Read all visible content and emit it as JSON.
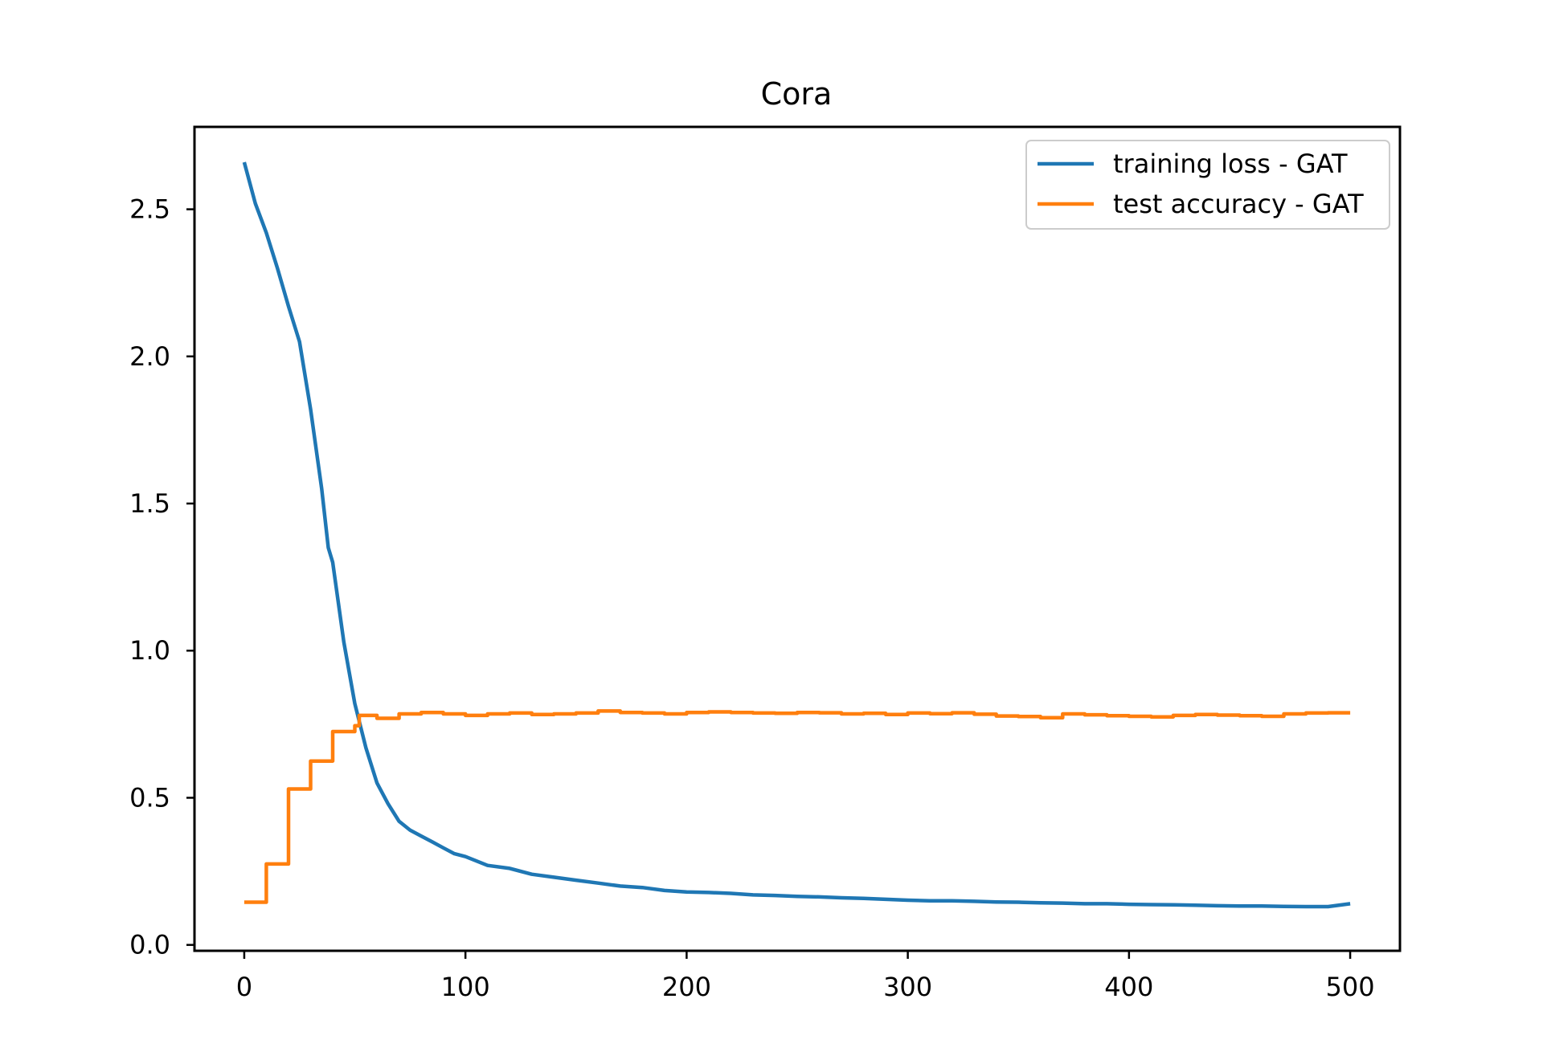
{
  "chart_data": {
    "type": "line",
    "title": "Cora",
    "xlabel": "",
    "ylabel": "",
    "xlim": [
      -22.5,
      522.5
    ],
    "ylim": [
      -0.02,
      2.78
    ],
    "xticks": [
      0,
      100,
      200,
      300,
      400,
      500
    ],
    "xtick_labels": [
      "0",
      "100",
      "200",
      "300",
      "400",
      "500"
    ],
    "yticks": [
      0.0,
      0.5,
      1.0,
      1.5,
      2.0,
      2.5
    ],
    "ytick_labels": [
      "0.0",
      "0.5",
      "1.0",
      "1.5",
      "2.0",
      "2.5"
    ],
    "grid": false,
    "legend_position": "upper right",
    "series": [
      {
        "name": "training loss - GAT",
        "color": "#1f77b4",
        "x": [
          0,
          5,
          10,
          15,
          20,
          25,
          30,
          35,
          38,
          40,
          45,
          50,
          55,
          60,
          65,
          70,
          75,
          80,
          85,
          90,
          95,
          100,
          110,
          120,
          130,
          140,
          150,
          160,
          170,
          180,
          190,
          200,
          210,
          220,
          230,
          240,
          250,
          260,
          270,
          280,
          290,
          300,
          310,
          320,
          330,
          340,
          350,
          360,
          370,
          380,
          390,
          400,
          410,
          420,
          430,
          440,
          450,
          460,
          470,
          480,
          490,
          500
        ],
        "y": [
          2.66,
          2.52,
          2.42,
          2.3,
          2.17,
          2.05,
          1.82,
          1.55,
          1.35,
          1.3,
          1.03,
          0.82,
          0.67,
          0.55,
          0.48,
          0.42,
          0.39,
          0.37,
          0.35,
          0.33,
          0.31,
          0.3,
          0.27,
          0.26,
          0.24,
          0.23,
          0.22,
          0.21,
          0.2,
          0.195,
          0.185,
          0.18,
          0.178,
          0.175,
          0.17,
          0.168,
          0.165,
          0.163,
          0.16,
          0.158,
          0.155,
          0.152,
          0.15,
          0.15,
          0.148,
          0.146,
          0.145,
          0.143,
          0.142,
          0.14,
          0.14,
          0.138,
          0.137,
          0.136,
          0.135,
          0.133,
          0.132,
          0.132,
          0.131,
          0.13,
          0.13,
          0.14
        ]
      },
      {
        "name": "test accuracy - GAT",
        "color": "#ff7f0e",
        "step": true,
        "x": [
          0,
          10,
          20,
          30,
          40,
          50,
          52,
          60,
          70,
          80,
          90,
          100,
          110,
          120,
          130,
          140,
          150,
          160,
          170,
          180,
          190,
          200,
          210,
          220,
          230,
          240,
          250,
          260,
          270,
          280,
          290,
          300,
          310,
          320,
          330,
          340,
          350,
          360,
          370,
          380,
          390,
          400,
          410,
          420,
          430,
          440,
          450,
          460,
          470,
          480,
          490,
          500
        ],
        "y": [
          0.145,
          0.275,
          0.53,
          0.625,
          0.725,
          0.745,
          0.78,
          0.77,
          0.785,
          0.79,
          0.785,
          0.78,
          0.785,
          0.788,
          0.783,
          0.785,
          0.788,
          0.795,
          0.79,
          0.788,
          0.785,
          0.79,
          0.792,
          0.79,
          0.788,
          0.787,
          0.79,
          0.789,
          0.785,
          0.787,
          0.783,
          0.788,
          0.786,
          0.789,
          0.784,
          0.778,
          0.776,
          0.772,
          0.785,
          0.782,
          0.779,
          0.777,
          0.775,
          0.78,
          0.783,
          0.781,
          0.779,
          0.777,
          0.785,
          0.788,
          0.789,
          0.789
        ]
      }
    ]
  }
}
